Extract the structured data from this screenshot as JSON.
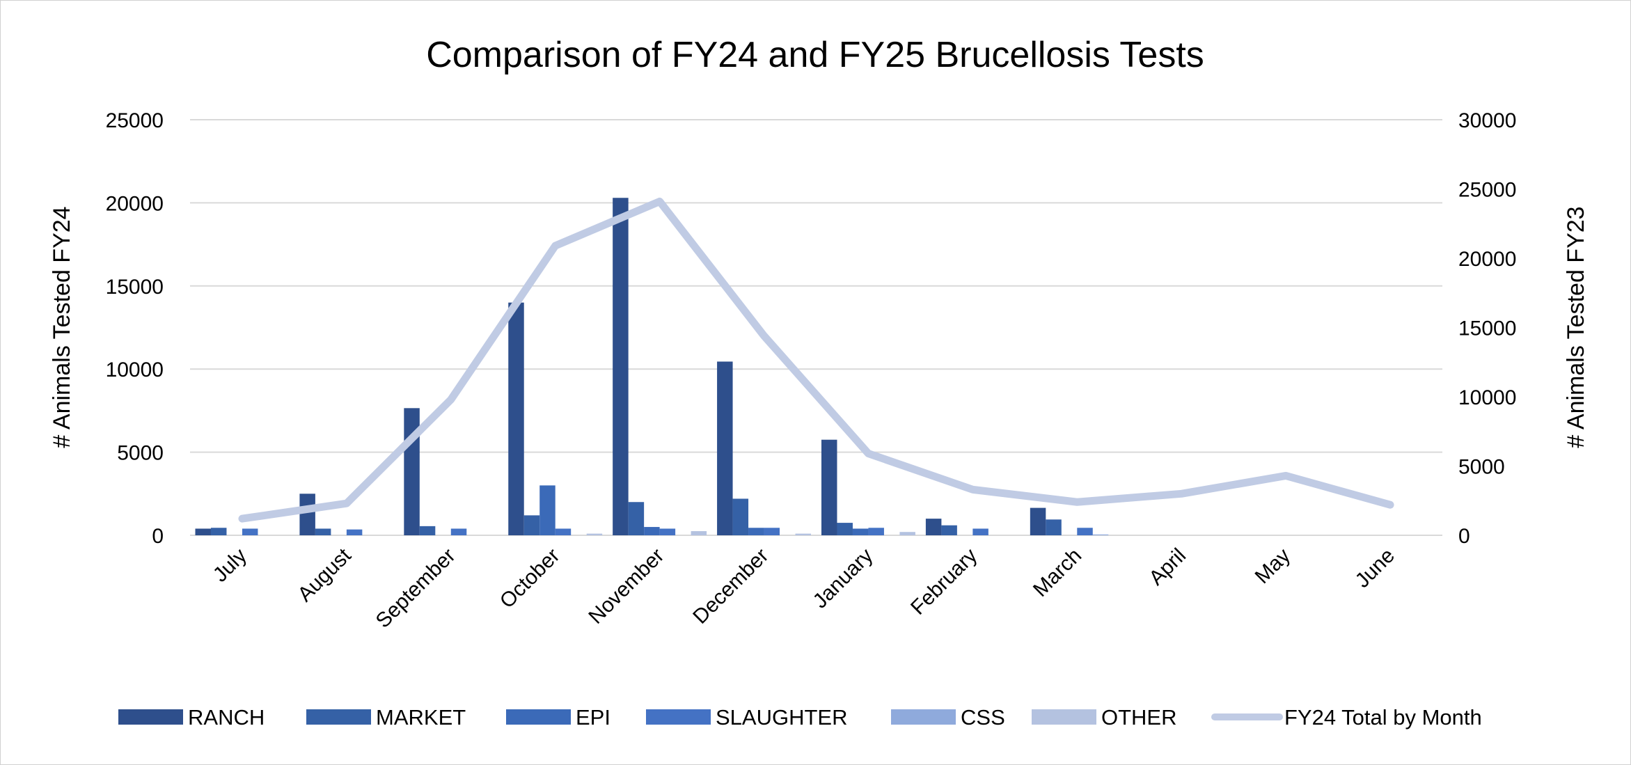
{
  "chart_data": {
    "type": "bar",
    "title": "Comparison of FY24 and FY25 Brucellosis Tests",
    "ylabel": "# Animals Tested FY24",
    "y2label": "# Animals Tested FY23",
    "ylim": [
      0,
      25000
    ],
    "y2lim": [
      0,
      30000
    ],
    "yticks": [
      0,
      5000,
      10000,
      15000,
      20000,
      25000
    ],
    "y2ticks": [
      0,
      5000,
      10000,
      15000,
      20000,
      25000,
      30000
    ],
    "grid": true,
    "legend": "bottom",
    "categories": [
      "July",
      "August",
      "September",
      "October",
      "November",
      "December",
      "January",
      "February",
      "March",
      "April",
      "May",
      "June"
    ],
    "series": [
      {
        "name": "RANCH",
        "type": "bar",
        "axis": "left",
        "color": "#2E4F8C",
        "values": [
          400,
          2500,
          7650,
          14000,
          20300,
          10450,
          5750,
          1000,
          1650,
          0,
          0,
          0
        ]
      },
      {
        "name": "MARKET",
        "type": "bar",
        "axis": "left",
        "color": "#3561A6",
        "values": [
          450,
          400,
          550,
          1200,
          2000,
          2200,
          750,
          600,
          950,
          0,
          0,
          0
        ]
      },
      {
        "name": "EPI",
        "type": "bar",
        "axis": "left",
        "color": "#3B6AB8",
        "values": [
          0,
          0,
          0,
          3000,
          500,
          450,
          400,
          0,
          0,
          0,
          0,
          0
        ]
      },
      {
        "name": "SLAUGHTER",
        "type": "bar",
        "axis": "left",
        "color": "#4472C4",
        "values": [
          400,
          350,
          400,
          400,
          400,
          450,
          450,
          400,
          450,
          0,
          0,
          0
        ]
      },
      {
        "name": "CSS",
        "type": "bar",
        "axis": "left",
        "color": "#8FAADC",
        "values": [
          0,
          0,
          0,
          0,
          0,
          0,
          0,
          0,
          50,
          0,
          0,
          0
        ]
      },
      {
        "name": "OTHER",
        "type": "bar",
        "axis": "left",
        "color": "#B4C2E0",
        "values": [
          0,
          0,
          0,
          100,
          250,
          100,
          200,
          0,
          0,
          0,
          0,
          0
        ]
      },
      {
        "name": "FY24 Total by Month",
        "type": "line",
        "axis": "right",
        "color": "#C0CBE4",
        "values": [
          1200,
          2300,
          9800,
          20900,
          24100,
          14400,
          5900,
          3300,
          2400,
          3000,
          4300,
          2200
        ]
      }
    ]
  }
}
